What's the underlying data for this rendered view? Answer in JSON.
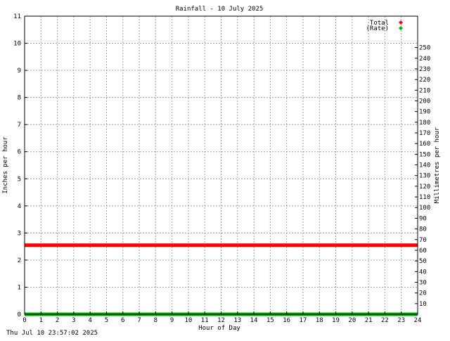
{
  "footer_timestamp": "Thu Jul 10 23:57:02 2025",
  "colors": {
    "total": "#ff0000",
    "rate": "#00b000",
    "grid": "#a0a0a0",
    "axis": "#000000",
    "background": "#ffffff"
  },
  "chart_data": {
    "type": "line",
    "title": "Rainfall - 10 July 2025",
    "xlabel": "Hour of Day",
    "ylabel": "Inches per hour",
    "y2label": "Millimetres per hour",
    "xlim": [
      0,
      24
    ],
    "ylim": [
      0,
      11
    ],
    "y2lim": [
      0,
      279.4
    ],
    "grid": true,
    "legend_position": "top-right",
    "x_ticks": [
      "0",
      "1",
      "2",
      "3",
      "4",
      "5",
      "6",
      "7",
      "8",
      "9",
      "10",
      "11",
      "12",
      "13",
      "14",
      "15",
      "16",
      "17",
      "18",
      "19",
      "20",
      "21",
      "22",
      "23",
      "24"
    ],
    "y_ticks": [
      "0",
      "1",
      "2",
      "3",
      "4",
      "5",
      "6",
      "7",
      "8",
      "9",
      "10",
      "11"
    ],
    "y2_ticks": [
      "10",
      "20",
      "30",
      "40",
      "50",
      "60",
      "70",
      "80",
      "90",
      "100",
      "110",
      "120",
      "130",
      "140",
      "150",
      "160",
      "170",
      "180",
      "190",
      "200",
      "210",
      "220",
      "230",
      "240",
      "250"
    ],
    "series": [
      {
        "name": "Total",
        "x": [
          0,
          24
        ],
        "y": [
          2.55,
          2.55
        ]
      },
      {
        "name": "(Rate)",
        "x": [
          0,
          24
        ],
        "y": [
          0,
          0
        ]
      }
    ]
  }
}
